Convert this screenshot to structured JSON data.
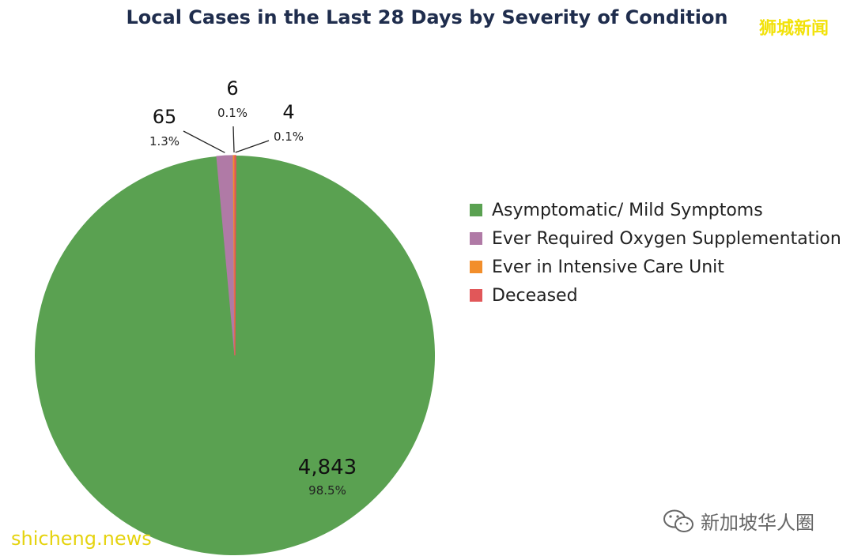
{
  "watermarks": {
    "top_right": "狮城新闻",
    "bottom_left": "shicheng.news",
    "bottom_right": "新加坡华人圈"
  },
  "chart_data": {
    "type": "pie",
    "title": "Local Cases in the Last 28 Days by Severity of Condition",
    "legend_position": "right",
    "slices": [
      {
        "name": "Asymptomatic/ Mild Symptoms",
        "value": 4843,
        "value_label": "4,843",
        "percent_label": "98.5%",
        "color": "#5aa151"
      },
      {
        "name": "Ever Required Oxygen Supplementation",
        "value": 65,
        "value_label": "65",
        "percent_label": "1.3%",
        "color": "#b07aa6"
      },
      {
        "name": "Ever in Intensive Care Unit",
        "value": 6,
        "value_label": "6",
        "percent_label": "0.1%",
        "color": "#f28e2b"
      },
      {
        "name": "Deceased",
        "value": 4,
        "value_label": "4",
        "percent_label": "0.1%",
        "color": "#e15759"
      }
    ]
  }
}
